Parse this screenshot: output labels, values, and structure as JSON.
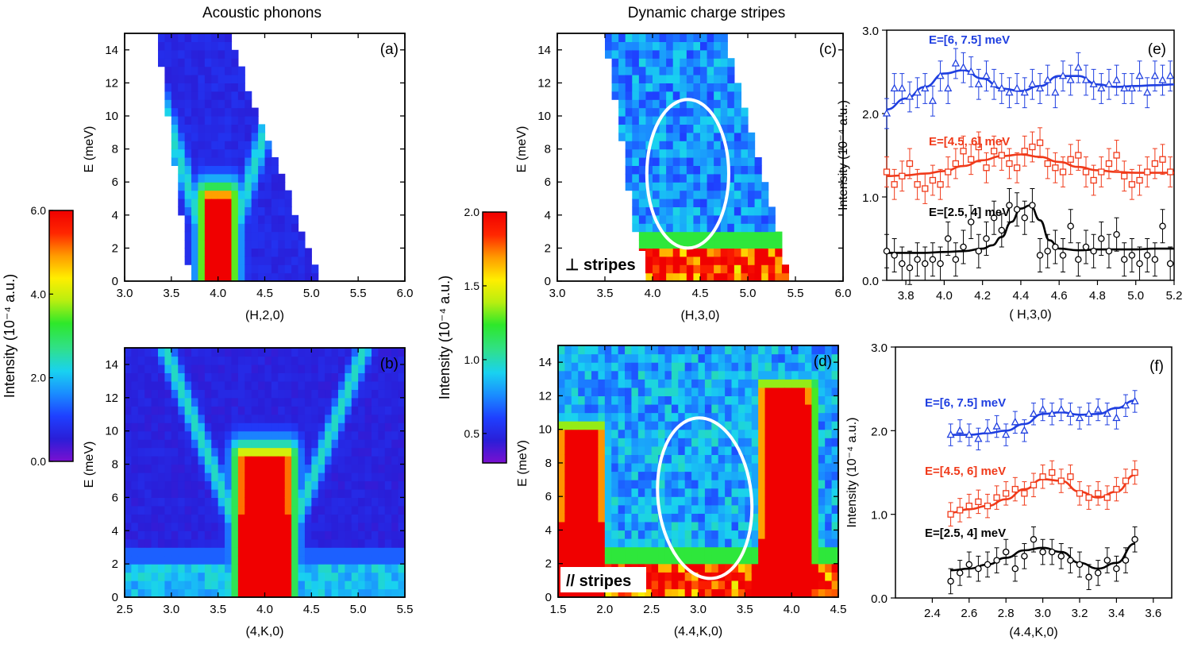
{
  "titles": {
    "left": "Acoustic phonons",
    "middle": "Dynamic charge stripes"
  },
  "colorbars": [
    {
      "name": "left",
      "label": "Intensity (10⁻⁴ a.u.)",
      "range": [
        0.0,
        6.0
      ],
      "ticks": [
        0.0,
        2.0,
        4.0,
        6.0
      ],
      "tick_labels": [
        "0.0",
        "2.0",
        "4.0",
        "6.0"
      ]
    },
    {
      "name": "middle",
      "label": "Intensity (10⁻⁴ a.u.)",
      "range": [
        0.3,
        2.0
      ],
      "ticks": [
        0.5,
        1.0,
        1.5,
        2.0
      ],
      "tick_labels": [
        "0.5",
        "1.0",
        "1.5",
        "2.0"
      ]
    }
  ],
  "colormap": [
    "#7a10d0",
    "#2a1ed8",
    "#1e40ff",
    "#1a8cff",
    "#19d2f0",
    "#30e08a",
    "#2ee82a",
    "#b8ee10",
    "#ffee00",
    "#ff9a00",
    "#ff2600",
    "#f00000"
  ],
  "chart_data": [
    {
      "id": "a",
      "type": "heatmap",
      "panel_label": "(a)",
      "xlabel": "(H,2,0)",
      "ylabel": "E (meV)",
      "xlim": [
        3.0,
        6.0
      ],
      "ylim": [
        0,
        15
      ],
      "xticks": [
        3.0,
        3.5,
        4.0,
        4.5,
        5.0,
        5.5,
        6.0
      ],
      "xtick_labels": [
        "3.0",
        "3.5",
        "4.0",
        "4.5",
        "5.0",
        "5.5",
        "6.0"
      ],
      "yticks": [
        0,
        2,
        4,
        6,
        8,
        10,
        12,
        14
      ],
      "ytick_labels": [
        "0",
        "2",
        "4",
        "6",
        "8",
        "10",
        "12",
        "14"
      ],
      "colorbar": "left",
      "coverage": {
        "x_left_at_E0": 3.7,
        "x_left_at_Emax": 3.35,
        "x_right_at_E0": 5.1,
        "x_right_at_Emax": 4.1
      },
      "features": [
        {
          "shape": "peak",
          "x": 4.0,
          "emax": 5.2,
          "half_width": 0.14,
          "value": 6.0
        },
        {
          "shape": "v-dispersion",
          "x": 4.0,
          "slope_meV_per_rlu": 18,
          "value": 2.2
        },
        {
          "shape": "background",
          "value": 0.7
        }
      ]
    },
    {
      "id": "b",
      "type": "heatmap",
      "panel_label": "(b)",
      "xlabel": "(4,K,0)",
      "ylabel": "E (meV)",
      "xlim": [
        2.5,
        5.5
      ],
      "ylim": [
        0,
        15
      ],
      "xticks": [
        2.5,
        3.0,
        3.5,
        4.0,
        4.5,
        5.0,
        5.5
      ],
      "xtick_labels": [
        "2.5",
        "3.0",
        "3.5",
        "4.0",
        "4.5",
        "5.0",
        "5.5"
      ],
      "yticks": [
        0,
        2,
        4,
        6,
        8,
        10,
        12,
        14
      ],
      "ytick_labels": [
        "0",
        "2",
        "4",
        "6",
        "8",
        "10",
        "12",
        "14"
      ],
      "colorbar": "left",
      "features": [
        {
          "shape": "peak",
          "x": 4.0,
          "emax": 8.5,
          "half_width": 0.27,
          "value": 6.0
        },
        {
          "shape": "v-dispersion",
          "x": 4.0,
          "slope_meV_per_rlu": 14,
          "value": 2.3
        },
        {
          "shape": "low-energy-band",
          "emax": 2.0,
          "value": 2.2
        },
        {
          "shape": "background",
          "value": 0.6
        }
      ]
    },
    {
      "id": "c",
      "type": "heatmap",
      "panel_label": "(c)",
      "inset_label": "⊥ stripes",
      "xlabel": "(H,3,0)",
      "ylabel": "E (meV)",
      "xlim": [
        3.0,
        6.0
      ],
      "ylim": [
        0,
        15
      ],
      "xticks": [
        3.0,
        3.5,
        4.0,
        4.5,
        5.0,
        5.5,
        6.0
      ],
      "xtick_labels": [
        "3.0",
        "3.5",
        "4.0",
        "4.5",
        "5.0",
        "5.5",
        "6.0"
      ],
      "yticks": [
        0,
        2,
        4,
        6,
        8,
        10,
        12,
        14
      ],
      "ytick_labels": [
        "0",
        "2",
        "4",
        "6",
        "8",
        "10",
        "12",
        "14"
      ],
      "colorbar": "middle",
      "coverage": {
        "x_left_at_E0": 3.9,
        "x_left_at_Emax": 3.5,
        "x_right_at_E0": 5.45,
        "x_right_at_Emax": 4.75
      },
      "ellipse": {
        "cx": 4.37,
        "cy": 6.5,
        "rx": 0.43,
        "ry": 4.5
      },
      "features": [
        {
          "shape": "low-energy-band",
          "emax": 2.2,
          "value": 2.0
        },
        {
          "shape": "background",
          "value": 0.75
        }
      ]
    },
    {
      "id": "d",
      "type": "heatmap",
      "panel_label": "(d)",
      "inset_label": "// stripes",
      "xlabel": "(4.4,K,0)",
      "ylabel": "E (meV)",
      "xlim": [
        1.5,
        4.5
      ],
      "ylim": [
        0,
        15
      ],
      "xticks": [
        1.5,
        2.0,
        2.5,
        3.0,
        3.5,
        4.0,
        4.5
      ],
      "xtick_labels": [
        "1.5",
        "2.0",
        "2.5",
        "3.0",
        "3.5",
        "4.0",
        "4.5"
      ],
      "yticks": [
        0,
        2,
        4,
        6,
        8,
        10,
        12,
        14
      ],
      "ytick_labels": [
        "0",
        "2",
        "4",
        "6",
        "8",
        "10",
        "12",
        "14"
      ],
      "colorbar": "middle",
      "ellipse": {
        "cx": 3.07,
        "cy": 5.9,
        "rx": 0.5,
        "ry": 4.8
      },
      "features": [
        {
          "shape": "peak",
          "x": 3.95,
          "emax": 12.5,
          "half_width": 0.27,
          "value": 2.0
        },
        {
          "shape": "peak",
          "x": 1.75,
          "emax": 10.0,
          "half_width": 0.22,
          "value": 2.0
        },
        {
          "shape": "low-energy-band",
          "emax": 1.8,
          "value": 2.0
        },
        {
          "shape": "background",
          "value": 0.8
        }
      ]
    },
    {
      "id": "e",
      "type": "scatter",
      "panel_label": "(e)",
      "xlabel": "( H,3,0)",
      "ylabel": "Intensity (10⁻⁴ a.u.)",
      "xlim": [
        3.7,
        5.2
      ],
      "ylim": [
        0.0,
        3.0
      ],
      "xticks": [
        3.8,
        4.0,
        4.2,
        4.4,
        4.6,
        4.8,
        5.0,
        5.2
      ],
      "xtick_labels": [
        "3.8",
        "4.0",
        "4.2",
        "4.4",
        "4.6",
        "4.8",
        "5.0",
        "5.2"
      ],
      "yticks": [
        0.0,
        1.0,
        2.0,
        3.0
      ],
      "ytick_labels": [
        "0.0",
        "1.0",
        "2.0",
        "3.0"
      ],
      "series": [
        {
          "name": "E=[6, 7.5] meV",
          "color": "#1f3fe0",
          "marker": "triangle",
          "x": [
            3.7,
            3.74,
            3.78,
            3.82,
            3.86,
            3.9,
            3.94,
            3.98,
            4.02,
            4.06,
            4.1,
            4.14,
            4.18,
            4.22,
            4.26,
            4.3,
            4.34,
            4.38,
            4.42,
            4.46,
            4.5,
            4.54,
            4.58,
            4.62,
            4.66,
            4.7,
            4.74,
            4.78,
            4.82,
            4.86,
            4.9,
            4.94,
            4.98,
            5.02,
            5.06,
            5.1,
            5.14,
            5.18
          ],
          "y": [
            2.0,
            2.3,
            2.3,
            2.2,
            2.25,
            2.3,
            2.15,
            2.45,
            2.3,
            2.6,
            2.55,
            2.5,
            2.35,
            2.45,
            2.35,
            2.3,
            2.25,
            2.3,
            2.25,
            2.35,
            2.3,
            2.4,
            2.25,
            2.45,
            2.4,
            2.55,
            2.4,
            2.35,
            2.3,
            2.35,
            2.4,
            2.3,
            2.3,
            2.45,
            2.25,
            2.45,
            2.4,
            2.45
          ],
          "error": 0.18,
          "fit": {
            "x": [
              3.7,
              3.8,
              3.9,
              4.0,
              4.1,
              4.2,
              4.3,
              4.4,
              4.5,
              4.6,
              4.7,
              4.8,
              4.9,
              5.0,
              5.1,
              5.2
            ],
            "y": [
              2.05,
              2.18,
              2.32,
              2.48,
              2.52,
              2.42,
              2.3,
              2.27,
              2.33,
              2.45,
              2.45,
              2.35,
              2.32,
              2.33,
              2.34,
              2.35
            ]
          }
        },
        {
          "name": "E=[4.5, 6] meV",
          "color": "#f03a1a",
          "marker": "square",
          "x": [
            3.7,
            3.74,
            3.78,
            3.82,
            3.86,
            3.9,
            3.94,
            3.98,
            4.02,
            4.06,
            4.1,
            4.14,
            4.18,
            4.22,
            4.26,
            4.3,
            4.34,
            4.38,
            4.42,
            4.46,
            4.5,
            4.54,
            4.58,
            4.62,
            4.66,
            4.7,
            4.74,
            4.78,
            4.82,
            4.86,
            4.9,
            4.94,
            4.98,
            5.02,
            5.06,
            5.1,
            5.14,
            5.18
          ],
          "y": [
            1.3,
            1.15,
            1.25,
            1.4,
            1.15,
            1.1,
            1.2,
            1.15,
            1.3,
            1.4,
            1.55,
            1.45,
            1.6,
            1.35,
            1.55,
            1.5,
            1.4,
            1.35,
            1.55,
            1.6,
            1.65,
            1.4,
            1.35,
            1.3,
            1.45,
            1.5,
            1.3,
            1.2,
            1.3,
            1.4,
            1.5,
            1.25,
            1.15,
            1.2,
            1.3,
            1.4,
            1.45,
            1.3
          ],
          "error": 0.18,
          "fit": {
            "x": [
              3.7,
              3.8,
              3.9,
              4.0,
              4.1,
              4.2,
              4.3,
              4.4,
              4.5,
              4.6,
              4.7,
              4.8,
              4.9,
              5.0,
              5.1,
              5.2
            ],
            "y": [
              1.25,
              1.26,
              1.28,
              1.31,
              1.37,
              1.44,
              1.49,
              1.51,
              1.48,
              1.42,
              1.36,
              1.32,
              1.3,
              1.29,
              1.29,
              1.29
            ]
          }
        },
        {
          "name": "E=[2.5, 4] meV",
          "color": "#000000",
          "marker": "circle",
          "x": [
            3.7,
            3.74,
            3.78,
            3.82,
            3.86,
            3.9,
            3.94,
            3.98,
            4.02,
            4.06,
            4.1,
            4.14,
            4.18,
            4.22,
            4.26,
            4.3,
            4.34,
            4.38,
            4.42,
            4.46,
            4.5,
            4.54,
            4.58,
            4.62,
            4.66,
            4.7,
            4.74,
            4.78,
            4.82,
            4.86,
            4.9,
            4.94,
            4.98,
            5.02,
            5.06,
            5.1,
            5.14,
            5.18
          ],
          "y": [
            0.35,
            0.3,
            0.2,
            0.15,
            0.25,
            0.2,
            0.25,
            0.2,
            0.5,
            0.25,
            0.4,
            0.7,
            0.35,
            0.5,
            0.75,
            0.6,
            0.9,
            0.85,
            0.75,
            0.9,
            0.3,
            0.35,
            0.4,
            0.3,
            0.65,
            0.25,
            0.4,
            0.35,
            0.5,
            0.35,
            0.55,
            0.25,
            0.3,
            0.2,
            0.3,
            0.25,
            0.65,
            0.2
          ],
          "error": 0.2,
          "fit": {
            "x": [
              3.7,
              3.8,
              3.9,
              4.0,
              4.1,
              4.2,
              4.25,
              4.3,
              4.35,
              4.4,
              4.45,
              4.5,
              4.55,
              4.6,
              4.7,
              4.8,
              4.9,
              5.0,
              5.1,
              5.2
            ],
            "y": [
              0.33,
              0.33,
              0.33,
              0.34,
              0.35,
              0.38,
              0.42,
              0.52,
              0.7,
              0.86,
              0.9,
              0.72,
              0.48,
              0.38,
              0.36,
              0.37,
              0.37,
              0.37,
              0.38,
              0.38
            ]
          }
        }
      ]
    },
    {
      "id": "f",
      "type": "scatter",
      "panel_label": "(f)",
      "xlabel": "(4.4,K,0)",
      "ylabel": "Intensity (10⁻⁴ a.u.)",
      "xlim": [
        2.2,
        3.7
      ],
      "ylim": [
        0.0,
        3.0
      ],
      "xticks": [
        2.4,
        2.6,
        2.8,
        3.0,
        3.2,
        3.4,
        3.6
      ],
      "xtick_labels": [
        "2.4",
        "2.6",
        "2.8",
        "3.0",
        "3.2",
        "3.4",
        "3.6"
      ],
      "yticks": [
        0.0,
        1.0,
        2.0,
        3.0
      ],
      "ytick_labels": [
        "0.0",
        "1.0",
        "2.0",
        "3.0"
      ],
      "series": [
        {
          "name": "E=[6, 7.5] meV",
          "color": "#1f3fe0",
          "marker": "triangle",
          "x": [
            2.5,
            2.55,
            2.6,
            2.65,
            2.7,
            2.75,
            2.8,
            2.85,
            2.9,
            2.95,
            3.0,
            3.05,
            3.1,
            3.15,
            3.2,
            3.25,
            3.3,
            3.35,
            3.4,
            3.45,
            3.5
          ],
          "y": [
            1.95,
            2.0,
            1.95,
            1.9,
            2.0,
            2.05,
            1.95,
            2.1,
            2.0,
            2.2,
            2.25,
            2.2,
            2.25,
            2.2,
            2.15,
            2.2,
            2.25,
            2.2,
            2.15,
            2.3,
            2.35
          ],
          "error": 0.13,
          "fit": {
            "x": [
              2.5,
              2.6,
              2.7,
              2.8,
              2.9,
              3.0,
              3.1,
              3.2,
              3.3,
              3.4,
              3.5
            ],
            "y": [
              1.95,
              1.95,
              1.97,
              2.0,
              2.08,
              2.2,
              2.22,
              2.19,
              2.2,
              2.27,
              2.36
            ]
          }
        },
        {
          "name": "E=[4.5, 6] meV",
          "color": "#f03a1a",
          "marker": "square",
          "x": [
            2.5,
            2.55,
            2.6,
            2.65,
            2.7,
            2.75,
            2.8,
            2.85,
            2.9,
            2.95,
            3.0,
            3.05,
            3.1,
            3.15,
            3.2,
            3.25,
            3.3,
            3.35,
            3.4,
            3.45,
            3.5
          ],
          "y": [
            1.0,
            1.05,
            1.1,
            1.15,
            1.1,
            1.2,
            1.25,
            1.3,
            1.25,
            1.35,
            1.45,
            1.5,
            1.4,
            1.45,
            1.25,
            1.2,
            1.25,
            1.2,
            1.3,
            1.4,
            1.5
          ],
          "error": 0.14,
          "fit": {
            "x": [
              2.5,
              2.6,
              2.7,
              2.8,
              2.9,
              3.0,
              3.1,
              3.2,
              3.3,
              3.4,
              3.5
            ],
            "y": [
              1.02,
              1.06,
              1.1,
              1.18,
              1.3,
              1.42,
              1.4,
              1.27,
              1.2,
              1.27,
              1.47
            ]
          }
        },
        {
          "name": "E=[2.5, 4] meV",
          "color": "#000000",
          "marker": "circle",
          "x": [
            2.5,
            2.55,
            2.6,
            2.65,
            2.7,
            2.75,
            2.8,
            2.85,
            2.9,
            2.95,
            3.0,
            3.05,
            3.1,
            3.15,
            3.2,
            3.25,
            3.3,
            3.35,
            3.4,
            3.45,
            3.5
          ],
          "y": [
            0.2,
            0.3,
            0.4,
            0.35,
            0.4,
            0.45,
            0.55,
            0.35,
            0.5,
            0.7,
            0.55,
            0.55,
            0.5,
            0.45,
            0.4,
            0.25,
            0.3,
            0.45,
            0.35,
            0.45,
            0.7
          ],
          "error": 0.15,
          "fit": {
            "x": [
              2.5,
              2.6,
              2.7,
              2.8,
              2.9,
              3.0,
              3.1,
              3.2,
              3.3,
              3.4,
              3.5
            ],
            "y": [
              0.33,
              0.35,
              0.4,
              0.48,
              0.57,
              0.6,
              0.55,
              0.42,
              0.35,
              0.42,
              0.65
            ]
          }
        }
      ]
    }
  ]
}
